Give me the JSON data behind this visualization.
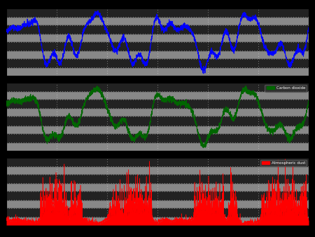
{
  "background_color": "#000000",
  "panel_bg_light": "#888888",
  "panel_bg_dark": "#444444",
  "stripe_light": "#888888",
  "stripe_dark": "#222222",
  "temp_color": "#0000FF",
  "co2_color": "#006600",
  "dust_color": "#FF0000",
  "xmin": -400000,
  "xmax": 0,
  "co2_legend_label": "Carbon dioxide",
  "dust_legend_label": "Atmospheric dust"
}
